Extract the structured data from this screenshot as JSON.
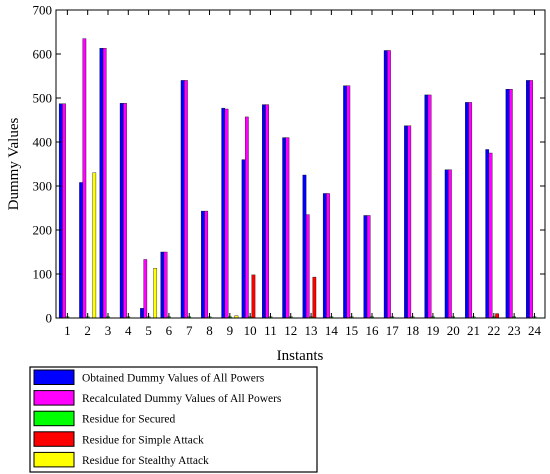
{
  "chart_data": {
    "type": "bar",
    "xlabel": "Instants",
    "ylabel": "Dummy Values",
    "ylim": [
      0,
      700
    ],
    "yticks": [
      0,
      100,
      200,
      300,
      400,
      500,
      600,
      700
    ],
    "grid": false,
    "legend_position": "below",
    "categories": [
      "1",
      "2",
      "3",
      "4",
      "5",
      "6",
      "7",
      "8",
      "9",
      "10",
      "11",
      "12",
      "13",
      "14",
      "15",
      "16",
      "17",
      "18",
      "19",
      "20",
      "21",
      "22",
      "23",
      "24"
    ],
    "series": [
      {
        "name": "Obtained Dummy Values of All Powers",
        "color": "#0000ff",
        "values": [
          487,
          308,
          613,
          488,
          22,
          150,
          540,
          243,
          477,
          360,
          485,
          410,
          325,
          283,
          528,
          233,
          608,
          437,
          507,
          337,
          490,
          383,
          520,
          540
        ]
      },
      {
        "name": "Recalculated Dummy Values of All Powers",
        "color": "#ff00ff",
        "values": [
          487,
          635,
          613,
          488,
          133,
          150,
          540,
          243,
          475,
          457,
          485,
          410,
          235,
          283,
          528,
          233,
          608,
          437,
          507,
          337,
          490,
          375,
          520,
          540
        ]
      },
      {
        "name": "Residue for Secured",
        "color": "#00ff00",
        "values": [
          3,
          3,
          3,
          3,
          3,
          3,
          3,
          3,
          3,
          3,
          3,
          3,
          3,
          3,
          3,
          3,
          3,
          3,
          3,
          3,
          3,
          3,
          3,
          3
        ]
      },
      {
        "name": "Residue for Simple Attack",
        "color": "#ff0000",
        "values": [
          0,
          0,
          0,
          0,
          0,
          0,
          0,
          0,
          0,
          98,
          0,
          0,
          93,
          0,
          0,
          0,
          0,
          0,
          0,
          0,
          0,
          10,
          0,
          0
        ]
      },
      {
        "name": "Residue for Stealthy Attack",
        "color": "#ffff00",
        "values": [
          0,
          330,
          0,
          0,
          113,
          0,
          0,
          0,
          5,
          0,
          0,
          0,
          0,
          0,
          0,
          0,
          0,
          0,
          0,
          0,
          0,
          0,
          0,
          0
        ]
      }
    ]
  }
}
